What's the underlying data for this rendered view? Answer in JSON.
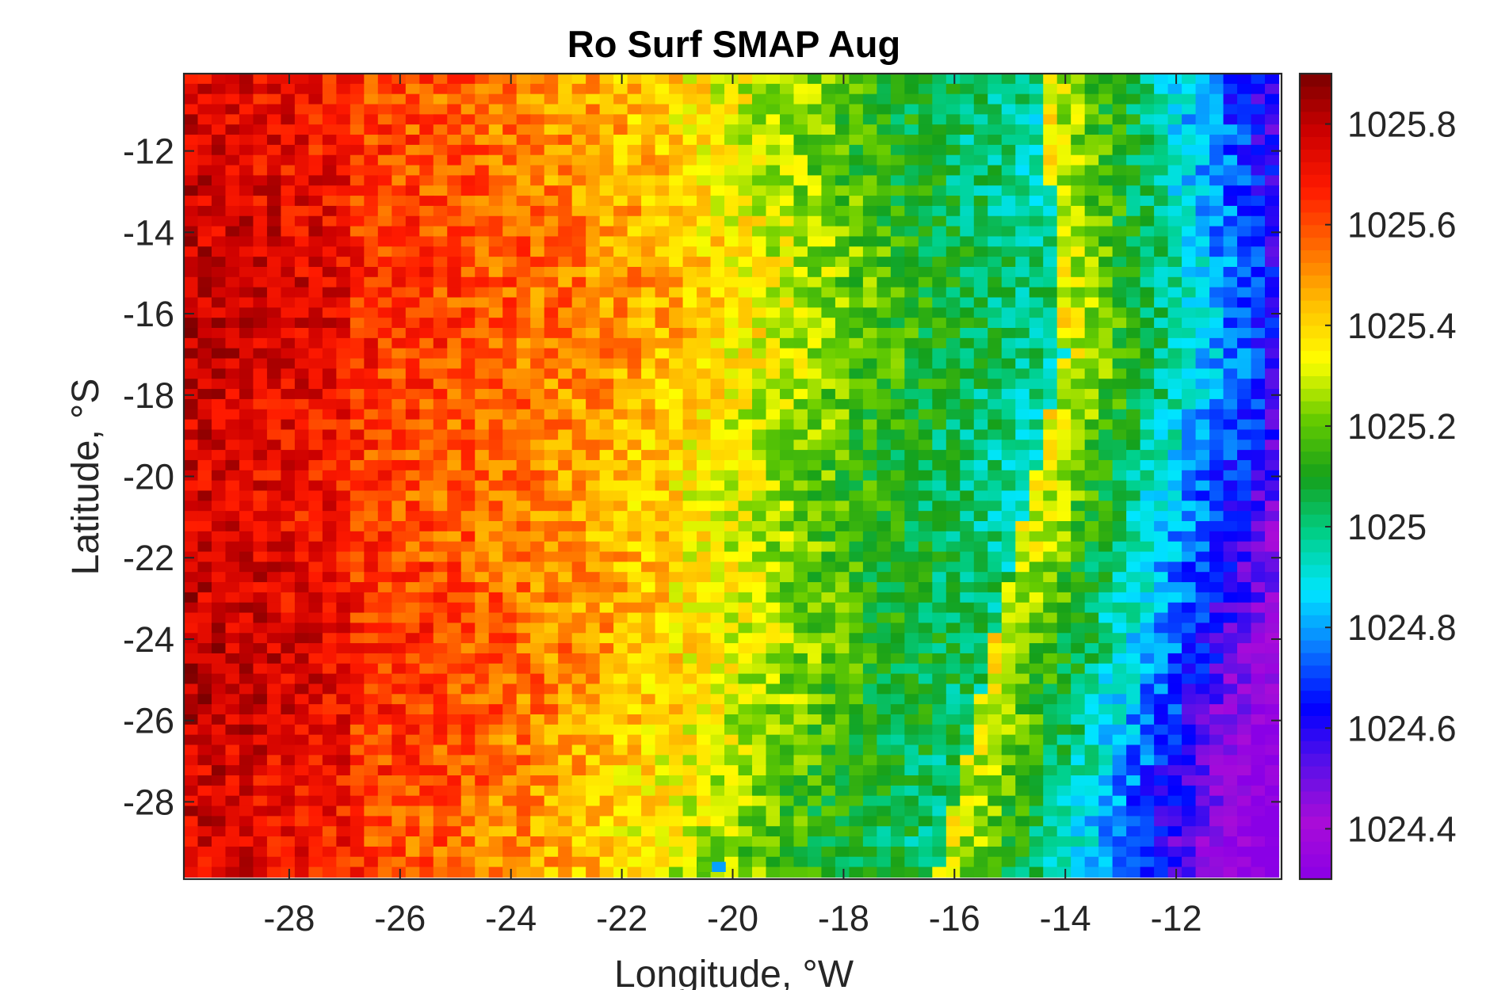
{
  "chart_data": {
    "type": "heatmap",
    "title": "Ro Surf SMAP Aug",
    "xlabel": "Longitude, °W",
    "ylabel": "Latitude, °S",
    "xlim": [
      -29.9,
      -10.1
    ],
    "ylim": [
      -29.9,
      -10.1
    ],
    "xticks": [
      -28,
      -26,
      -24,
      -22,
      -20,
      -18,
      -16,
      -14,
      -12
    ],
    "xtick_labels": [
      "-28",
      "-26",
      "-24",
      "-22",
      "-20",
      "-18",
      "-16",
      "-14",
      "-12"
    ],
    "yticks": [
      -12,
      -14,
      -16,
      -18,
      -20,
      -22,
      -24,
      -26,
      -28
    ],
    "ytick_labels": [
      "-12",
      "-14",
      "-16",
      "-18",
      "-20",
      "-22",
      "-24",
      "-26",
      "-28"
    ],
    "grid": false,
    "colormap": "jet-like (purple-blue-cyan-green-yellow-orange-red-darkred)",
    "colorbar": {
      "position": "right",
      "range": [
        1024.3,
        1025.9
      ],
      "ticks": [
        1024.4,
        1024.6,
        1024.8,
        1025.0,
        1025.2,
        1025.4,
        1025.6,
        1025.8
      ],
      "tick_labels": [
        "1024.4",
        "1024.6",
        "1024.8",
        "1025",
        "1025.2",
        "1025.4",
        "1025.6",
        "1025.8"
      ],
      "colors": [
        "#8a00e6",
        "#a90cd8",
        "#5a10e8",
        "#0000ff",
        "#0a78ff",
        "#00e6ff",
        "#00d08a",
        "#15a01a",
        "#66cc00",
        "#ffff00",
        "#ffbf00",
        "#ff6a00",
        "#ff1a00",
        "#cc0000",
        "#7a0000"
      ]
    },
    "grid_resolution_deg": 0.25,
    "field_description": "density increases from ~1024.4 in the east (lon -10) to ~1025.85 in the west (lon -30)",
    "anomalies": [
      {
        "lon": -20.5,
        "lat": -29.6,
        "values": [
          1025.2,
          1024.8
        ]
      }
    ]
  }
}
